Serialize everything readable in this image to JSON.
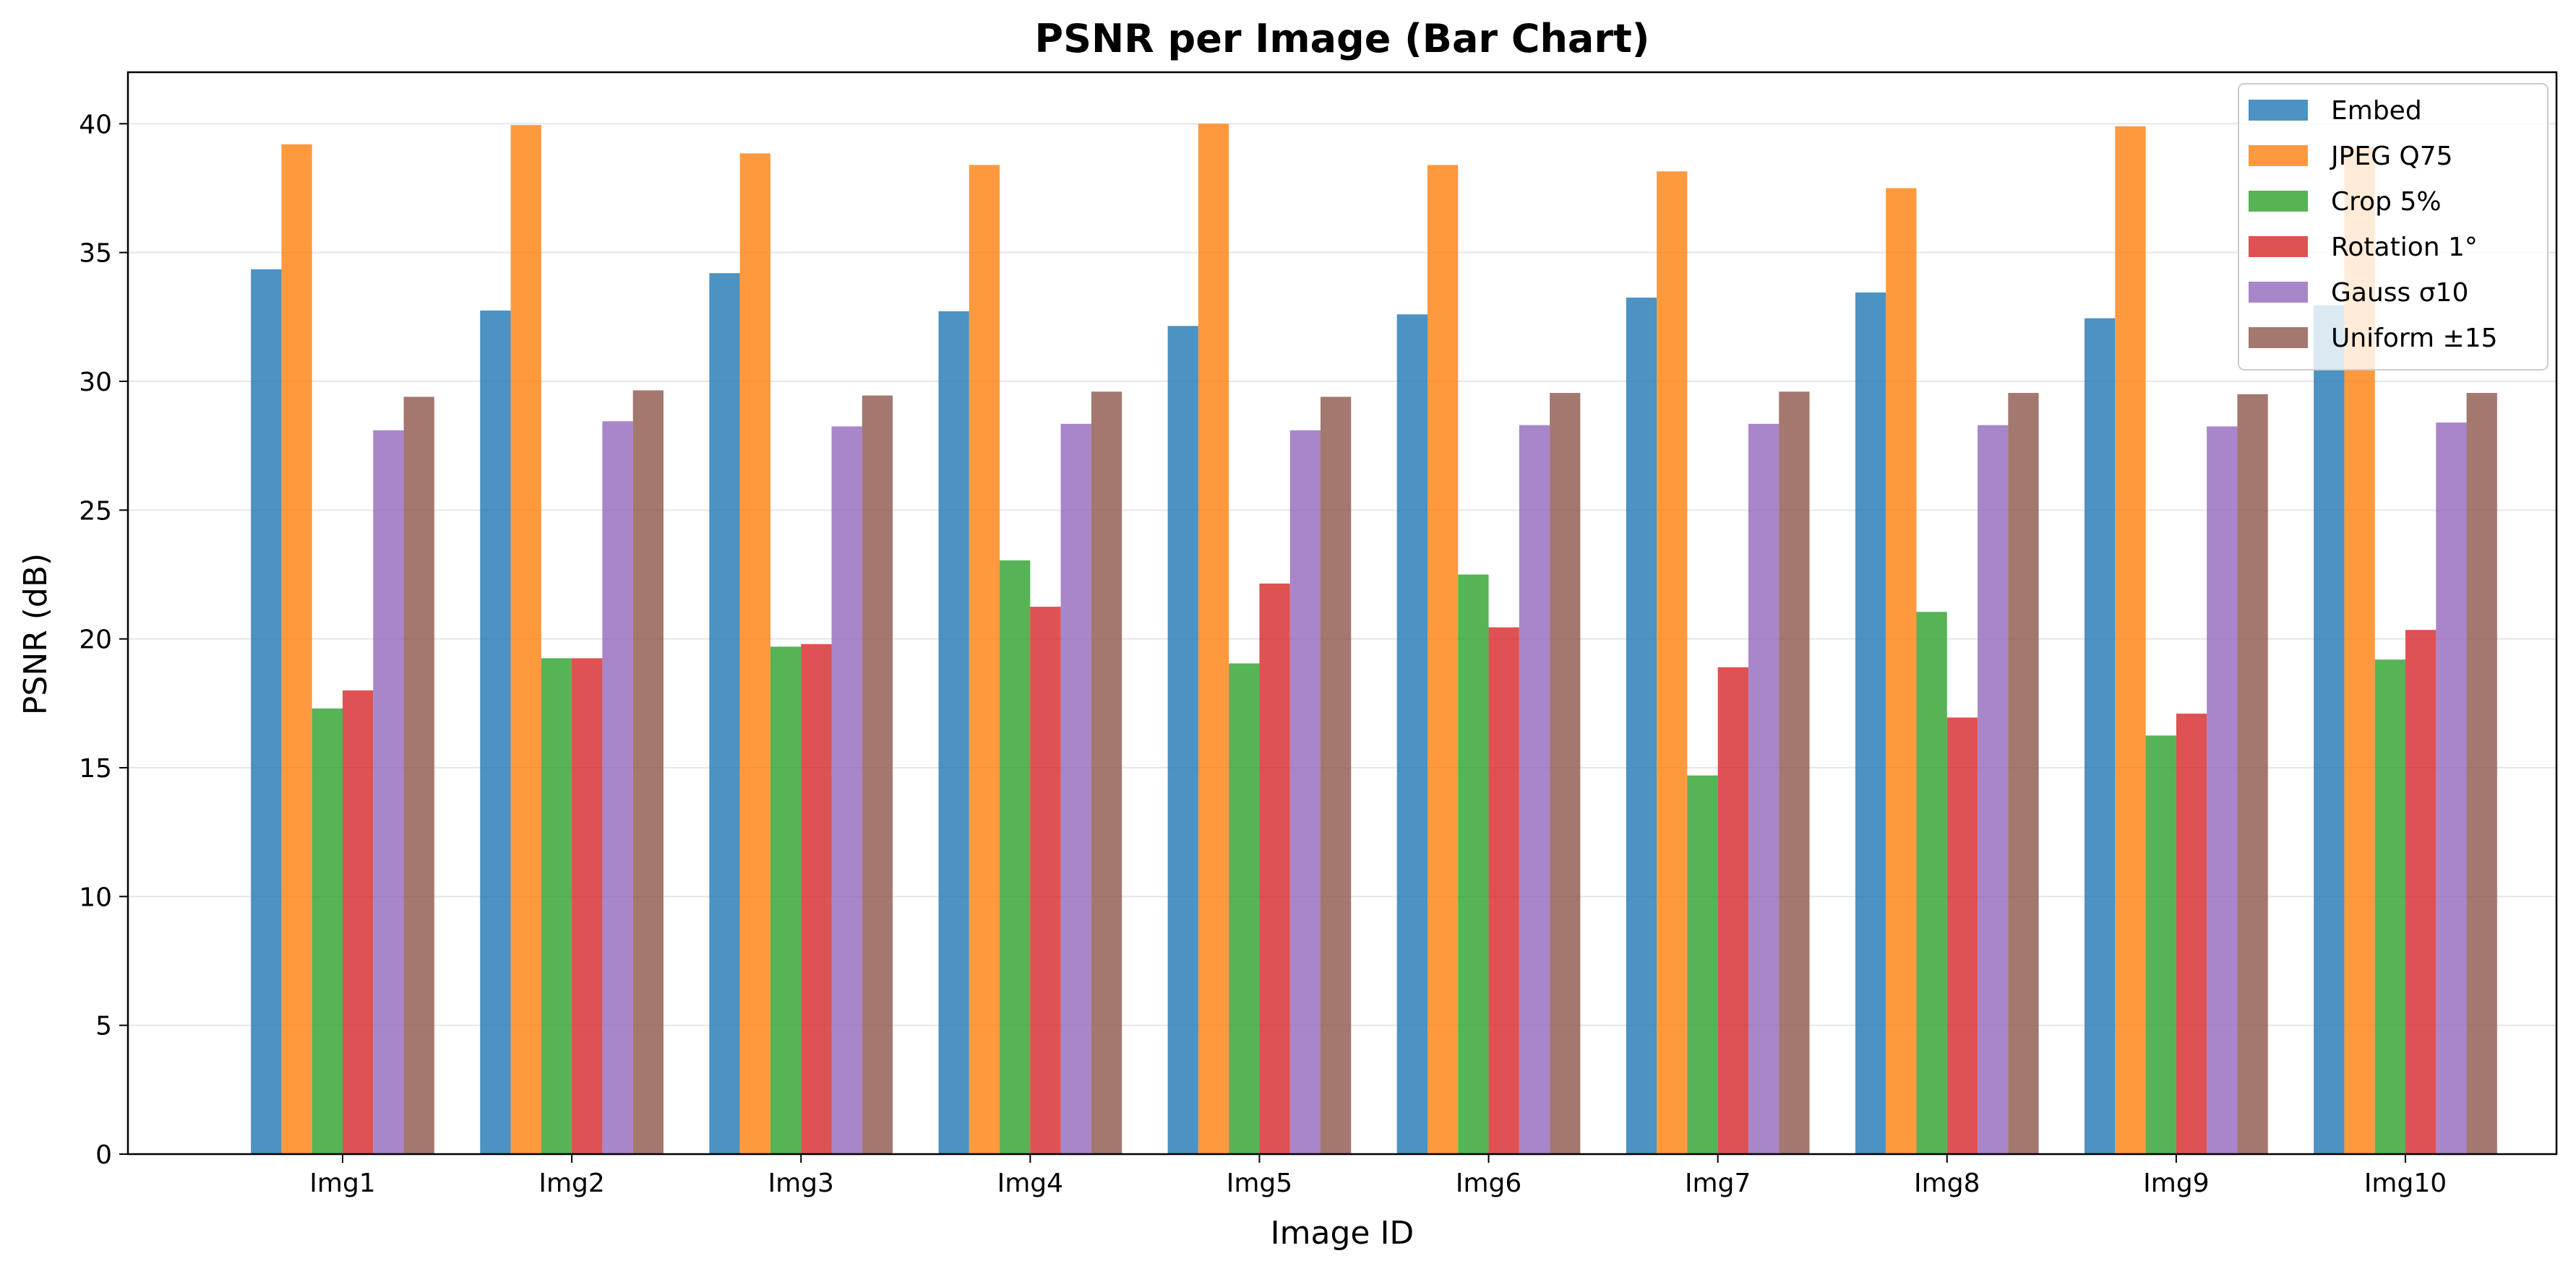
{
  "chart_data": {
    "type": "bar",
    "title": "PSNR per Image (Bar Chart)",
    "xlabel": "Image ID",
    "ylabel": "PSNR (dB)",
    "ylim": [
      0,
      42
    ],
    "yticks": [
      0,
      5,
      10,
      15,
      20,
      25,
      30,
      35,
      40
    ],
    "grid": "horizontal",
    "legend_position": "top-right",
    "categories": [
      "Img1",
      "Img2",
      "Img3",
      "Img4",
      "Img5",
      "Img6",
      "Img7",
      "Img8",
      "Img9",
      "Img10"
    ],
    "series": [
      {
        "name": "Embed",
        "color": "#1f77b4",
        "values": [
          34.35,
          32.75,
          34.2,
          32.72,
          32.15,
          32.6,
          33.25,
          33.45,
          32.45,
          32.95
        ]
      },
      {
        "name": "JPEG Q75",
        "color": "#ff7f0e",
        "values": [
          39.2,
          39.95,
          38.85,
          38.4,
          40.0,
          38.4,
          38.15,
          37.5,
          39.9,
          39.1
        ]
      },
      {
        "name": "Crop 5%",
        "color": "#2ca02c",
        "values": [
          17.3,
          19.25,
          19.7,
          23.05,
          19.05,
          22.5,
          14.7,
          21.05,
          16.25,
          19.2
        ]
      },
      {
        "name": "Rotation 1°",
        "color": "#d62728",
        "values": [
          18.0,
          19.25,
          19.8,
          21.25,
          22.15,
          20.45,
          18.9,
          16.95,
          17.1,
          20.35
        ]
      },
      {
        "name": "Gauss σ10",
        "color": "#9467bd",
        "values": [
          28.1,
          28.45,
          28.25,
          28.35,
          28.1,
          28.3,
          28.35,
          28.3,
          28.25,
          28.4
        ]
      },
      {
        "name": "Uniform ±15",
        "color": "#8c564b",
        "values": [
          29.4,
          29.65,
          29.45,
          29.6,
          29.4,
          29.55,
          29.6,
          29.55,
          29.5,
          29.55
        ]
      }
    ]
  }
}
